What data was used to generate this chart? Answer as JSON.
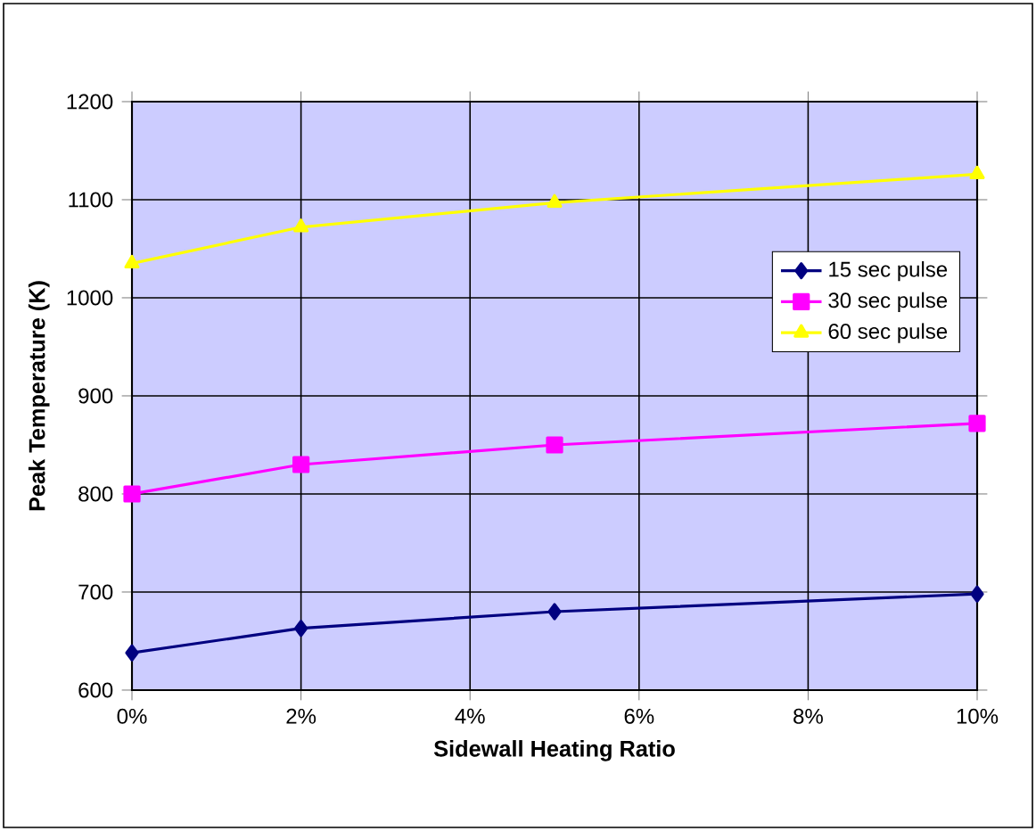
{
  "chart_data": {
    "type": "line",
    "xlabel": "Sidewall Heating  Ratio",
    "ylabel": "Peak Temperature (K)",
    "x": [
      0,
      2,
      5,
      10
    ],
    "series": [
      {
        "name": "15 sec pulse",
        "color": "#000080",
        "marker": "diamond",
        "values": [
          638,
          663,
          680,
          698
        ]
      },
      {
        "name": "30 sec pulse",
        "color": "#ff00ff",
        "marker": "square",
        "values": [
          800,
          830,
          850,
          872
        ]
      },
      {
        "name": "60 sec pulse",
        "color": "#ffff00",
        "marker": "triangle",
        "values": [
          1035,
          1072,
          1097,
          1126
        ]
      }
    ],
    "xlim": [
      0,
      10
    ],
    "xticks": [
      {
        "value": 0,
        "label": "0%"
      },
      {
        "value": 2,
        "label": "2%"
      },
      {
        "value": 4,
        "label": "4%"
      },
      {
        "value": 6,
        "label": "6%"
      },
      {
        "value": 8,
        "label": "8%"
      },
      {
        "value": 10,
        "label": "10%"
      }
    ],
    "ylim": [
      600,
      1200
    ],
    "yticks": [
      600,
      700,
      800,
      900,
      1000,
      1100,
      1200
    ],
    "grid": true,
    "legend": "right",
    "line_style": "solid"
  }
}
